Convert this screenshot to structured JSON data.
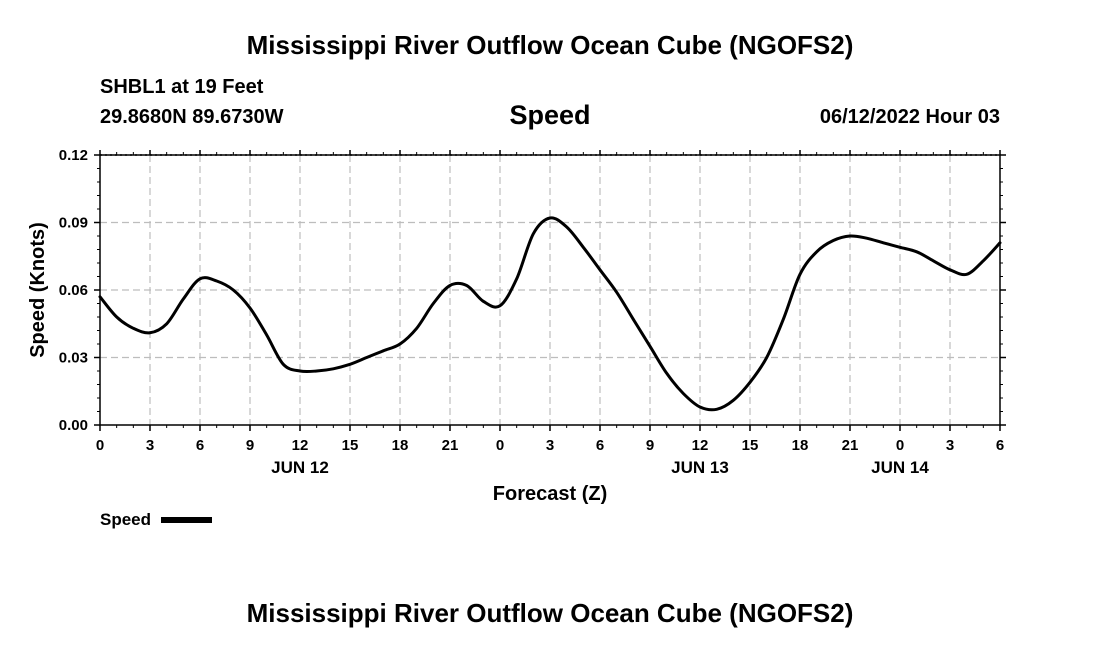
{
  "page": {
    "title": "Mississippi River Outflow Ocean Cube (NGOFS2)",
    "title_repeat": "Mississippi River Outflow Ocean Cube (NGOFS2)",
    "station_label": "SHBL1 at 19 Feet",
    "coordinates": "29.8680N  89.6730W",
    "datetime": "06/12/2022 Hour 03"
  },
  "chart_data": {
    "type": "line",
    "title": "Speed",
    "xlabel": "Forecast (Z)",
    "ylabel": "Speed (Knots)",
    "xlim": [
      0,
      54
    ],
    "ylim": [
      0,
      0.12
    ],
    "y_ticks": [
      "0.00",
      "0.03",
      "0.06",
      "0.09",
      "0.12"
    ],
    "y_tick_values": [
      0,
      0.03,
      0.06,
      0.09,
      0.12
    ],
    "x_tick_labels": [
      "0",
      "3",
      "6",
      "9",
      "12",
      "15",
      "18",
      "21",
      "0",
      "3",
      "6",
      "9",
      "12",
      "15",
      "18",
      "21",
      "0",
      "3",
      "6"
    ],
    "day_labels": [
      {
        "label": "JUN 12",
        "x": 12
      },
      {
        "label": "JUN 13",
        "x": 36
      },
      {
        "label": "JUN 14",
        "x": 48
      }
    ],
    "grid": true,
    "legend_position": "bottom-left",
    "series": [
      {
        "name": "Speed",
        "color": "#000000",
        "x": [
          0,
          1,
          2,
          3,
          4,
          5,
          6,
          7,
          8,
          9,
          10,
          11,
          12,
          13,
          14,
          15,
          16,
          17,
          18,
          19,
          20,
          21,
          22,
          23,
          24,
          25,
          26,
          27,
          28,
          29,
          30,
          31,
          32,
          33,
          34,
          35,
          36,
          37,
          38,
          39,
          40,
          41,
          42,
          43,
          44,
          45,
          46,
          47,
          48,
          49,
          50,
          51,
          52,
          53,
          54
        ],
        "y": [
          0.057,
          0.048,
          0.043,
          0.041,
          0.045,
          0.056,
          0.065,
          0.064,
          0.06,
          0.052,
          0.04,
          0.027,
          0.024,
          0.024,
          0.025,
          0.027,
          0.03,
          0.033,
          0.036,
          0.043,
          0.054,
          0.062,
          0.062,
          0.055,
          0.053,
          0.065,
          0.085,
          0.092,
          0.088,
          0.079,
          0.069,
          0.059,
          0.047,
          0.035,
          0.023,
          0.014,
          0.008,
          0.007,
          0.011,
          0.019,
          0.03,
          0.047,
          0.067,
          0.077,
          0.082,
          0.084,
          0.083,
          0.081,
          0.079,
          0.077,
          0.073,
          0.069,
          0.067,
          0.073,
          0.081
        ]
      }
    ]
  }
}
